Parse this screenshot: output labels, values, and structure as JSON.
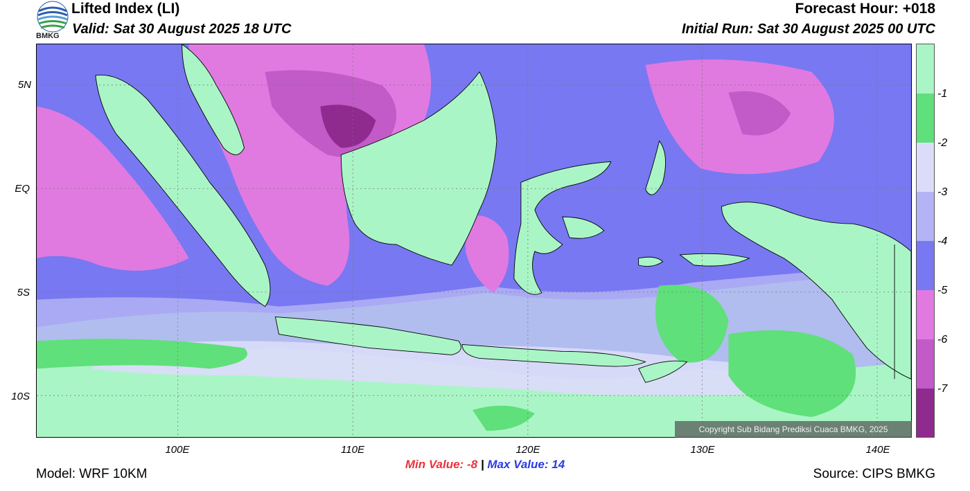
{
  "header": {
    "title": "Lifted Index (LI)",
    "valid": "Valid: Sat 30 August 2025 18 UTC",
    "forecast_hour": "Forecast Hour: +018",
    "initial_run": "Initial Run: Sat 30 August 2025 00 UTC",
    "logo_text": "BMKG"
  },
  "axes": {
    "lat_labels": [
      "5N",
      "EQ",
      "5S",
      "10S"
    ],
    "lon_labels": [
      "100E",
      "110E",
      "120E",
      "130E",
      "140E"
    ]
  },
  "colorbar": {
    "labels": [
      "-1",
      "-2",
      "-3",
      "-4",
      "-5",
      "-6",
      "-7"
    ],
    "colors": [
      "#aaf5c6",
      "#5fe07a",
      "#dcdcfa",
      "#b3b3f5",
      "#7878f2",
      "#e07ae0",
      "#c25ac8",
      "#8f2a8f"
    ]
  },
  "stats": {
    "min_label": "Min Value:",
    "min_value": "-8",
    "separator": "|",
    "max_label": "Max Value:",
    "max_value": "14"
  },
  "footer": {
    "model": "Model: WRF 10KM",
    "source": "Source: CIPS BMKG",
    "copyright": "Copyright Sub Bidang Prediksi Cuaca BMKG, 2025"
  },
  "colors": {
    "background": "#ffffff",
    "sea_light_green": "#aaf5c6",
    "green": "#5fe07a",
    "lavender": "#dcdcfa",
    "light_blue_purple": "#b3b3f5",
    "blue": "#7878f2",
    "pink": "#e07ae0",
    "magenta": "#c25ac8",
    "dark_purple": "#8f2a8f"
  }
}
